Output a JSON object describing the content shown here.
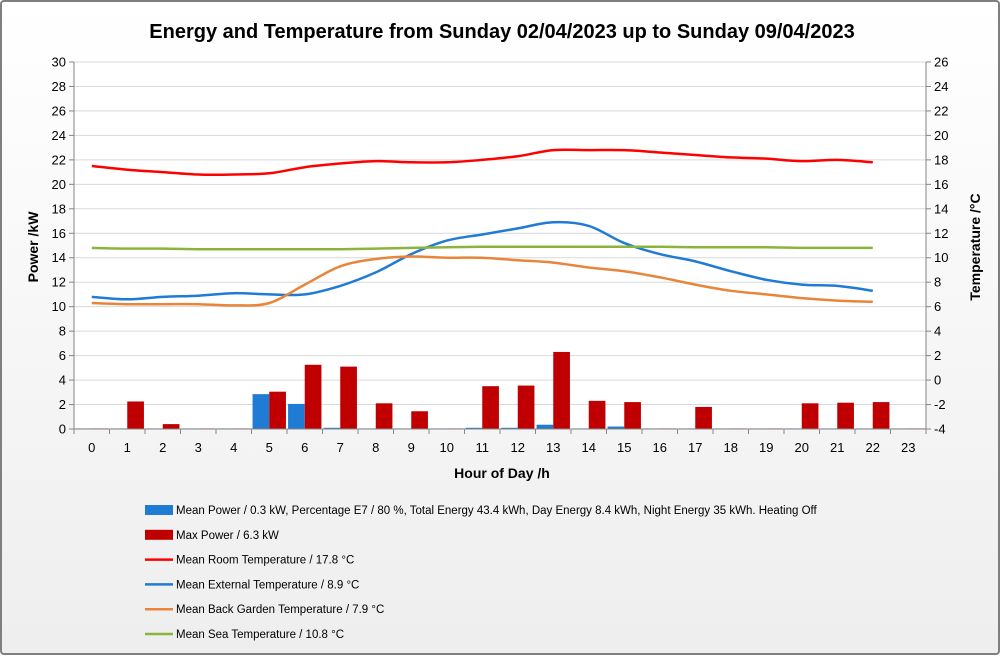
{
  "chart_data": {
    "type": "bar+line",
    "title": "Energy and Temperature from Sunday 02/04/2023 up to Sunday 09/04/2023",
    "xlabel": "Hour of Day /h",
    "ylabel_left": "Power /kW",
    "ylabel_right": "Temperature /°C",
    "ylim_left": [
      0,
      30
    ],
    "ylim_right": [
      -4,
      26
    ],
    "yticks_left": [
      0,
      2,
      4,
      6,
      8,
      10,
      12,
      14,
      16,
      18,
      20,
      22,
      24,
      26,
      28,
      30
    ],
    "yticks_right": [
      -4,
      -2,
      0,
      2,
      4,
      6,
      8,
      10,
      12,
      14,
      16,
      18,
      20,
      22,
      24,
      26
    ],
    "categories": [
      0,
      1,
      2,
      3,
      4,
      5,
      6,
      7,
      8,
      9,
      10,
      11,
      12,
      13,
      14,
      15,
      16,
      17,
      18,
      19,
      20,
      21,
      22,
      23
    ],
    "grid": "horizontal",
    "legend_position": "bottom",
    "bar_series": [
      {
        "name": "Mean Power / 0.3 kW, Percentage E7 / 80 %, Total Energy 43.4 kWh, Day Energy 8.4 kWh, Night Energy 35 kWh. Heating Off",
        "color": "#1f7bd4",
        "axis": "left",
        "values": [
          0.05,
          0.05,
          0.05,
          0.05,
          0.05,
          2.85,
          2.05,
          0.1,
          0.05,
          0.05,
          0.05,
          0.1,
          0.1,
          0.35,
          0.05,
          0.2,
          0.05,
          0.05,
          0.05,
          0.05,
          0.05,
          0.05,
          0.05,
          0.05
        ]
      },
      {
        "name": "Max Power / 6.3 kW",
        "color": "#c00000",
        "axis": "left",
        "values": [
          0.05,
          2.25,
          0.4,
          0.05,
          0.05,
          3.05,
          5.25,
          5.1,
          2.1,
          1.45,
          0.05,
          3.5,
          3.55,
          6.3,
          2.3,
          2.2,
          0.05,
          1.8,
          0.05,
          0.05,
          2.1,
          2.15,
          2.2,
          0.05
        ]
      }
    ],
    "line_series": [
      {
        "name": "Mean Room Temperature / 17.8 °C",
        "color": "#ff0000",
        "axis": "right",
        "x": [
          0,
          1,
          2,
          3,
          4,
          5,
          6,
          7,
          8,
          9,
          10,
          11,
          12,
          13,
          14,
          15,
          16,
          17,
          18,
          19,
          20,
          21,
          22
        ],
        "values": [
          17.5,
          17.2,
          17.0,
          16.8,
          16.8,
          16.9,
          17.4,
          17.7,
          17.9,
          17.8,
          17.8,
          18.0,
          18.3,
          18.8,
          18.8,
          18.8,
          18.6,
          18.4,
          18.2,
          18.1,
          17.9,
          18.0,
          17.8
        ]
      },
      {
        "name": "Mean External Temperature / 8.9 °C",
        "color": "#1f7bd4",
        "axis": "right",
        "x": [
          0,
          1,
          2,
          3,
          4,
          5,
          6,
          7,
          8,
          9,
          10,
          11,
          12,
          13,
          14,
          15,
          16,
          17,
          18,
          19,
          20,
          21,
          22
        ],
        "values": [
          6.8,
          6.6,
          6.8,
          6.9,
          7.1,
          7.0,
          7.0,
          7.7,
          8.8,
          10.3,
          11.4,
          11.9,
          12.4,
          12.9,
          12.6,
          11.2,
          10.3,
          9.7,
          8.9,
          8.2,
          7.8,
          7.7,
          7.3
        ]
      },
      {
        "name": "Mean Back Garden Temperature / 7.9 °C",
        "color": "#e8853a",
        "axis": "right",
        "x": [
          0,
          1,
          2,
          3,
          4,
          5,
          6,
          7,
          8,
          9,
          10,
          11,
          12,
          13,
          14,
          15,
          16,
          17,
          18,
          19,
          20,
          21,
          22
        ],
        "values": [
          6.3,
          6.2,
          6.2,
          6.2,
          6.1,
          6.3,
          7.8,
          9.3,
          9.9,
          10.1,
          10.0,
          10.0,
          9.8,
          9.6,
          9.2,
          8.9,
          8.4,
          7.8,
          7.3,
          7.0,
          6.7,
          6.5,
          6.4
        ]
      },
      {
        "name": "Mean Sea Temperature / 10.8 °C",
        "color": "#8cb43c",
        "axis": "right",
        "x": [
          0,
          1,
          2,
          3,
          4,
          5,
          6,
          7,
          8,
          9,
          10,
          11,
          12,
          13,
          14,
          15,
          16,
          17,
          18,
          19,
          20,
          21,
          22
        ],
        "values": [
          10.8,
          10.75,
          10.75,
          10.7,
          10.7,
          10.7,
          10.7,
          10.7,
          10.75,
          10.8,
          10.85,
          10.9,
          10.9,
          10.9,
          10.9,
          10.9,
          10.9,
          10.85,
          10.85,
          10.85,
          10.8,
          10.8,
          10.8
        ]
      }
    ]
  }
}
